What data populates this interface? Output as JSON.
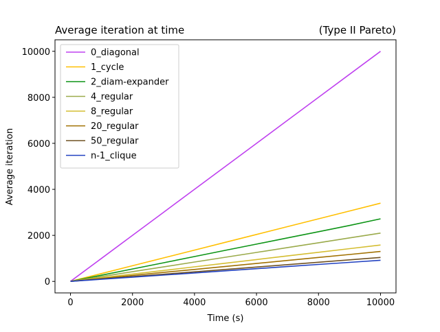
{
  "chart_data": {
    "type": "line",
    "title": "Average iteration at time",
    "subtitle": "(Type II Pareto)",
    "xlabel": "Time (s)",
    "ylabel": "Average iteration",
    "xlim": [
      -500,
      10500
    ],
    "ylim": [
      -500,
      10500
    ],
    "xticks": [
      0,
      2000,
      4000,
      6000,
      8000,
      10000
    ],
    "yticks": [
      0,
      2000,
      4000,
      6000,
      8000,
      10000
    ],
    "grid": false,
    "legend_position": "top-left",
    "x": [
      0,
      1000,
      2000,
      3000,
      4000,
      5000,
      6000,
      7000,
      8000,
      9000,
      10000
    ],
    "series": [
      {
        "name": "0_diagonal",
        "color": "#bf40ef",
        "values": [
          0,
          1000,
          2000,
          3000,
          4000,
          5000,
          6000,
          7000,
          8000,
          9000,
          10000
        ]
      },
      {
        "name": "1_cycle",
        "color": "#ffbf00",
        "values": [
          0,
          340,
          680,
          1020,
          1360,
          1700,
          2040,
          2380,
          2720,
          3060,
          3400
        ]
      },
      {
        "name": "2_diam-expander",
        "color": "#0c9415",
        "values": [
          0,
          270,
          540,
          810,
          1080,
          1350,
          1620,
          1890,
          2160,
          2430,
          2720
        ]
      },
      {
        "name": "4_regular",
        "color": "#9aaa4a",
        "values": [
          0,
          210,
          420,
          630,
          840,
          1050,
          1260,
          1470,
          1680,
          1890,
          2100
        ]
      },
      {
        "name": "8_regular",
        "color": "#d4bd30",
        "values": [
          0,
          158,
          316,
          474,
          632,
          790,
          948,
          1106,
          1264,
          1422,
          1580
        ]
      },
      {
        "name": "20_regular",
        "color": "#a07000",
        "values": [
          0,
          130,
          260,
          390,
          520,
          650,
          780,
          910,
          1040,
          1170,
          1300
        ]
      },
      {
        "name": "50_regular",
        "color": "#6e5020",
        "values": [
          0,
          104,
          208,
          312,
          416,
          520,
          624,
          728,
          832,
          936,
          1040
        ]
      },
      {
        "name": "n-1_clique",
        "color": "#2040c0",
        "values": [
          0,
          92,
          184,
          276,
          368,
          460,
          552,
          644,
          736,
          828,
          920
        ]
      }
    ]
  }
}
